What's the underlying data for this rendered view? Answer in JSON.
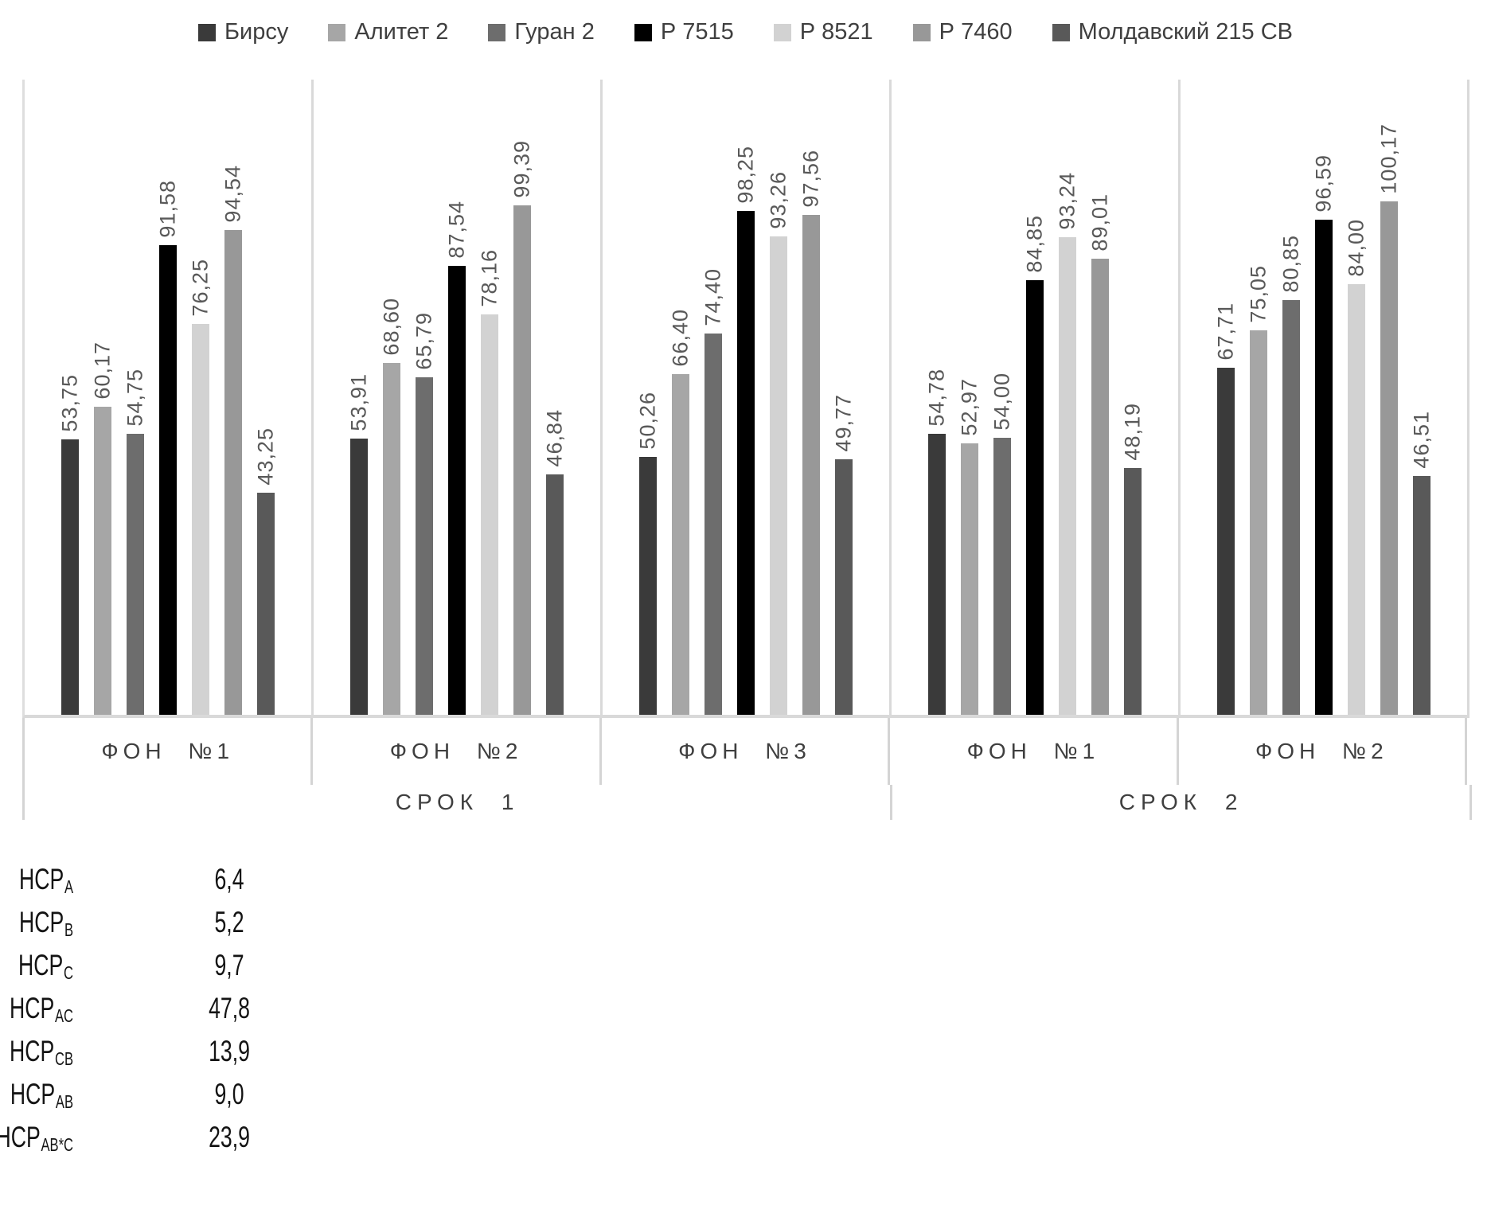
{
  "chart_data": {
    "type": "bar",
    "title": "",
    "legend_position": "top",
    "grid": false,
    "ylim": [
      0,
      124
    ],
    "value_label_style": "rotated-90-above-bar",
    "series": [
      "Бирсу",
      "Алитет 2",
      "Гуран 2",
      "Р 7515",
      "Р 8521",
      "Р 7460",
      "Молдавский 215 СВ"
    ],
    "series_colors": [
      "#3a3a3a",
      "#a6a6a6",
      "#6d6d6d",
      "#000000",
      "#d2d2d2",
      "#989898",
      "#595959"
    ],
    "groups": [
      {
        "fon_label": "ФОН №1",
        "srok": "СРОК 1",
        "values": [
          53.75,
          60.17,
          54.75,
          91.58,
          76.25,
          94.54,
          43.25
        ],
        "value_labels": [
          "53,75",
          "60,17",
          "54,75",
          "91,58",
          "76,25",
          "94,54",
          "43,25"
        ]
      },
      {
        "fon_label": "ФОН №2",
        "srok": "СРОК 1",
        "values": [
          53.91,
          68.6,
          65.79,
          87.54,
          78.16,
          99.39,
          46.84
        ],
        "value_labels": [
          "53,91",
          "68,60",
          "65,79",
          "87,54",
          "78,16",
          "99,39",
          "46,84"
        ]
      },
      {
        "fon_label": "ФОН №3",
        "srok": "СРОК 1",
        "values": [
          50.26,
          66.4,
          74.4,
          98.25,
          93.26,
          97.56,
          49.77
        ],
        "value_labels": [
          "50,26",
          "66,40",
          "74,40",
          "98,25",
          "93,26",
          "97,56",
          "49,77"
        ]
      },
      {
        "fon_label": "ФОН №1",
        "srok": "СРОК 2",
        "values": [
          54.78,
          52.97,
          54.0,
          84.85,
          93.24,
          89.01,
          48.19
        ],
        "value_labels": [
          "54,78",
          "52,97",
          "54,00",
          "84,85",
          "93,24",
          "89,01",
          "48,19"
        ]
      },
      {
        "fon_label": "ФОН №2",
        "srok": "СРОК 2",
        "values": [
          67.71,
          75.05,
          80.85,
          96.59,
          84.0,
          100.17,
          46.51
        ],
        "value_labels": [
          "67,71",
          "75,05",
          "80,85",
          "96,59",
          "84,00",
          "100,17",
          "46,51"
        ]
      }
    ],
    "srok_groups": [
      {
        "label": "СРОК 1",
        "panel_span": 3
      },
      {
        "label": "СРОК 2",
        "panel_span": 2
      }
    ]
  },
  "hcp_table": {
    "rows": [
      {
        "label": "НСР",
        "subscript": "A",
        "value": "6,4"
      },
      {
        "label": "НСР",
        "subscript": "B",
        "value": "5,2"
      },
      {
        "label": "НСР",
        "subscript": "C",
        "value": "9,7"
      },
      {
        "label": "НСР",
        "subscript": "AC",
        "value": "47,8"
      },
      {
        "label": "НСР",
        "subscript": "CB",
        "value": "13,9"
      },
      {
        "label": "НСР",
        "subscript": "AB",
        "value": "9,0"
      },
      {
        "label": "НСР",
        "subscript": "AB*C",
        "value": "23,9"
      }
    ]
  }
}
